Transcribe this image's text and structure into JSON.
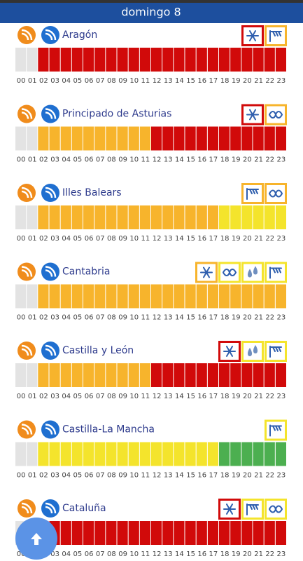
{
  "header": {
    "title": "domingo 8"
  },
  "hours": [
    "00",
    "01",
    "02",
    "03",
    "04",
    "05",
    "06",
    "07",
    "08",
    "09",
    "10",
    "11",
    "12",
    "13",
    "14",
    "15",
    "16",
    "17",
    "18",
    "19",
    "20",
    "21",
    "22",
    "23"
  ],
  "palette": {
    "g": "#e3e3e3",
    "r": "#d10a0a",
    "o": "#f7b42c",
    "y": "#f4e42c",
    "v": "#4caf50"
  },
  "regions": [
    {
      "name": "Aragón",
      "cells": "ggrrrrrrrrrrrrrrrrrrrrrr",
      "warnings": [
        {
          "kind": "snow",
          "color": "r"
        },
        {
          "kind": "wind",
          "color": "o"
        }
      ]
    },
    {
      "name": "Principado de Asturias",
      "cells": "ggoooooooooorrrrrrrrrrrr",
      "warnings": [
        {
          "kind": "snow",
          "color": "r"
        },
        {
          "kind": "coast",
          "color": "o"
        }
      ]
    },
    {
      "name": "Illes Balears",
      "cells": "ggooooooooooooooooyyyyyy",
      "warnings": [
        {
          "kind": "wind",
          "color": "o"
        },
        {
          "kind": "coast",
          "color": "o"
        }
      ]
    },
    {
      "name": "Cantabria",
      "cells": "ggoooooooooooooooooooooo",
      "warnings": [
        {
          "kind": "snow",
          "color": "o"
        },
        {
          "kind": "coast",
          "color": "y"
        },
        {
          "kind": "rain",
          "color": "y"
        },
        {
          "kind": "wind",
          "color": "y"
        }
      ]
    },
    {
      "name": "Castilla y León",
      "cells": "ggoooooooooorrrrrrrrrrrr",
      "warnings": [
        {
          "kind": "snow",
          "color": "r"
        },
        {
          "kind": "rain",
          "color": "y"
        },
        {
          "kind": "wind",
          "color": "y"
        }
      ]
    },
    {
      "name": "Castilla-La Mancha",
      "cells": "ggyyyyyyyyyyyyyyyyvvvvvv",
      "warnings": [
        {
          "kind": "wind",
          "color": "y"
        }
      ]
    },
    {
      "name": "Cataluña",
      "cells": "ggrrrrrrrrrrrrrrrrrrrrrr",
      "warnings": [
        {
          "kind": "snow",
          "color": "r"
        },
        {
          "kind": "wind",
          "color": "y"
        },
        {
          "kind": "coast",
          "color": "y"
        }
      ]
    }
  ]
}
